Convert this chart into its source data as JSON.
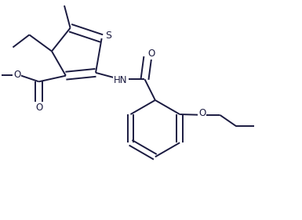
{
  "background_color": "#ffffff",
  "line_color": "#1a1a40",
  "line_width": 1.4,
  "font_size": 8.5,
  "figure_size": [
    3.85,
    2.81
  ],
  "dpi": 100,
  "xlim": [
    0.0,
    1.0
  ],
  "ylim": [
    0.0,
    0.73
  ]
}
